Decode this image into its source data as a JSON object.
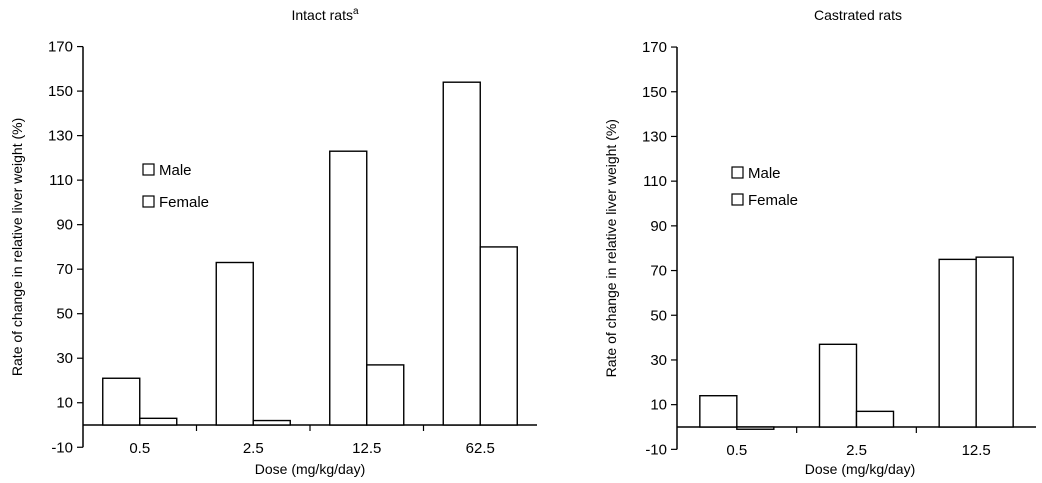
{
  "chart_data": [
    {
      "type": "bar",
      "title": "Intact rats",
      "title_sup": "a",
      "xlabel": "Dose (mg/kg/day)",
      "ylabel": "Rate of change in relative liver weight (%)",
      "categories": [
        "0.5",
        "2.5",
        "12.5",
        "62.5"
      ],
      "ylim": [
        -10,
        170
      ],
      "yticks": [
        "-10",
        "10",
        "30",
        "50",
        "70",
        "90",
        "110",
        "130",
        "150",
        "170"
      ],
      "legend_position": "left",
      "grid": false,
      "series": [
        {
          "name": "Male",
          "values": [
            21,
            73,
            123,
            154
          ]
        },
        {
          "name": "Female",
          "values": [
            3,
            2,
            27,
            80
          ]
        }
      ]
    },
    {
      "type": "bar",
      "title": "Castrated rats",
      "xlabel": "Dose (mg/kg/day)",
      "ylabel": "Rate of change in relative liver weight (%)",
      "categories": [
        "0.5",
        "2.5",
        "12.5"
      ],
      "ylim": [
        -10,
        170
      ],
      "yticks": [
        "-10",
        "10",
        "30",
        "50",
        "70",
        "90",
        "110",
        "130",
        "150",
        "170"
      ],
      "legend_position": "left",
      "grid": false,
      "series": [
        {
          "name": "Male",
          "values": [
            14,
            37,
            75
          ]
        },
        {
          "name": "Female",
          "values": [
            -1,
            7,
            76
          ]
        }
      ]
    }
  ]
}
